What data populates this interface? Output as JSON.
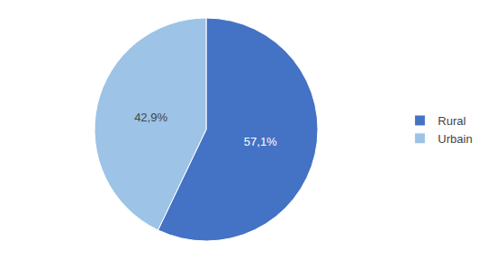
{
  "chart_data": {
    "type": "pie",
    "categories": [
      "Rural",
      "Urbain"
    ],
    "values": [
      57.1,
      42.9
    ],
    "value_labels": [
      "57,1%",
      "42,9%"
    ],
    "colors": [
      "#4472C4",
      "#9DC3E6"
    ],
    "data_labels": true,
    "legend": "right"
  }
}
